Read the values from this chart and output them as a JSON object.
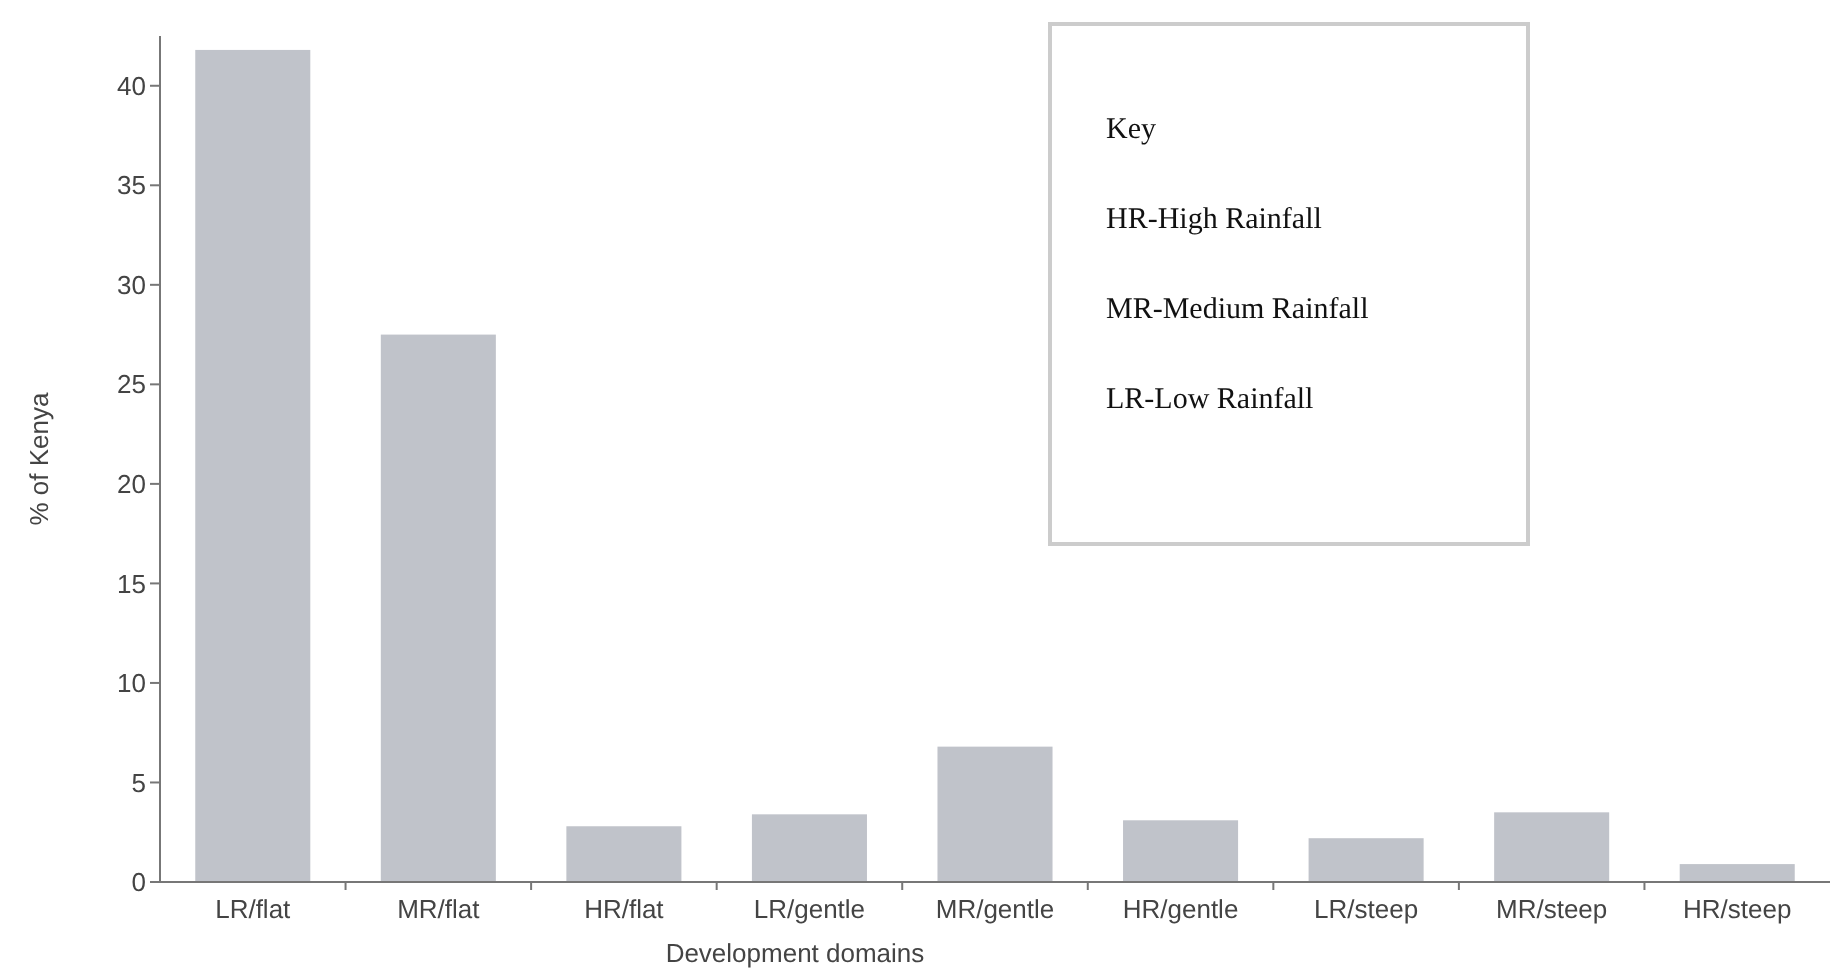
{
  "chart_data": {
    "type": "bar",
    "xlabel": "Development domains",
    "ylabel": "% of Kenya",
    "categories": [
      "LR/flat",
      "MR/flat",
      "HR/flat",
      "LR/gentle",
      "MR/gentle",
      "HR/gentle",
      "LR/steep",
      "MR/steep",
      "HR/steep"
    ],
    "values": [
      41.8,
      27.5,
      2.8,
      3.4,
      6.8,
      3.1,
      2.2,
      3.5,
      0.9
    ],
    "color": "#c0c3ca",
    "ylim": [
      0,
      42.5
    ],
    "yticks": [
      0,
      5,
      10,
      15,
      20,
      25,
      30,
      35,
      40
    ],
    "grid": false,
    "annotations": [
      "Key",
      "HR-High Rainfall",
      "MR-Medium Rainfall",
      "LR-Low Rainfall"
    ]
  }
}
